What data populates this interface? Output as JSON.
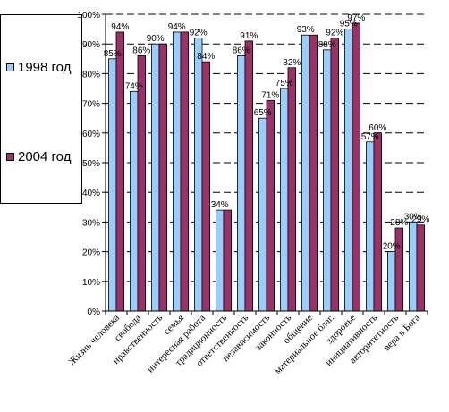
{
  "chart_data": {
    "type": "bar",
    "categories": [
      "Жизнь человека",
      "свобода",
      "нравственность",
      "семья",
      "интересная работа",
      "традиционность",
      "ответственность",
      "независимость",
      "законность",
      "общение",
      "материальное благ.",
      "здоровье",
      "инициативность",
      "авторитетность",
      "вера в Бога"
    ],
    "series": [
      {
        "name": "1998 год",
        "color": "#99CCFF",
        "values": [
          85,
          74,
          90,
          94,
          92,
          34,
          86,
          65,
          75,
          93,
          88,
          95,
          57,
          20,
          30
        ]
      },
      {
        "name": "2004 год",
        "color": "#993366",
        "values": [
          94,
          86,
          90,
          94,
          84,
          34,
          91,
          71,
          82,
          93,
          92,
          97,
          60,
          28,
          29
        ]
      }
    ],
    "data_labels": [
      [
        "85%",
        "74%",
        "90%",
        "94%",
        "92%",
        "34%",
        "86%",
        "65%",
        "75%",
        "93%",
        "88%",
        "95%",
        "57%",
        "20%",
        "30%"
      ],
      [
        "94%",
        "86%",
        "",
        "",
        "84%",
        "",
        "91%",
        "71%",
        "82%",
        "",
        "92%",
        "97%",
        "60%",
        "28%",
        "29%"
      ]
    ],
    "ylim": [
      0,
      100
    ],
    "yticks": [
      "0%",
      "10%",
      "20%",
      "30%",
      "40%",
      "50%",
      "60%",
      "70%",
      "80%",
      "90%",
      "100%"
    ],
    "grid": true,
    "legend_position": "left"
  }
}
